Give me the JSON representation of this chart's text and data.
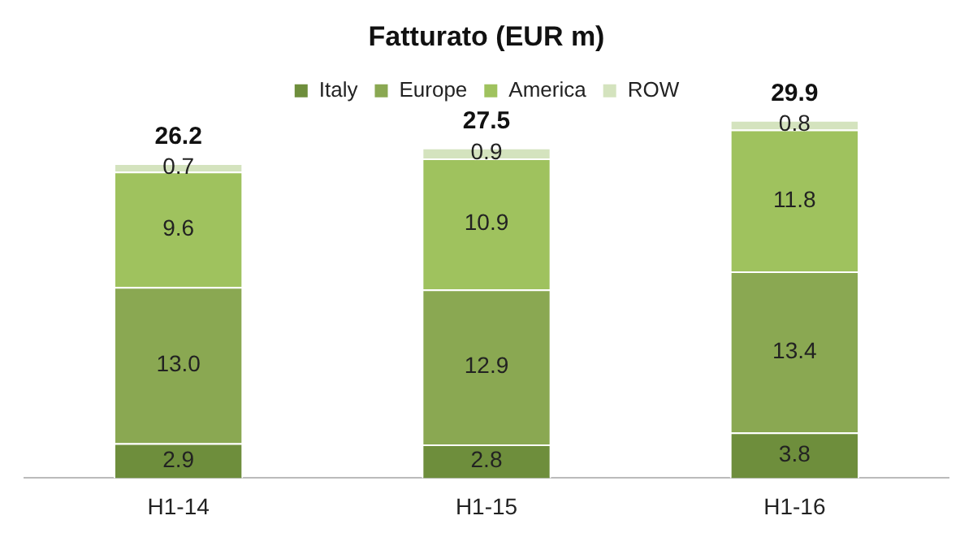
{
  "chart_data": {
    "type": "bar",
    "title": "Fatturato (EUR m)",
    "stacked": true,
    "categories": [
      "H1-14",
      "H1-15",
      "H1-16"
    ],
    "series": [
      {
        "name": "Italy",
        "color": "#6e8e3c",
        "values": [
          2.9,
          2.8,
          3.8
        ],
        "value_labels": [
          "2.9",
          "2.8",
          "3.8"
        ]
      },
      {
        "name": "Europe",
        "color": "#8aa852",
        "values": [
          13.0,
          12.9,
          13.4
        ],
        "value_labels": [
          "13.0",
          "12.9",
          "13.4"
        ]
      },
      {
        "name": "America",
        "color": "#9fc25e",
        "values": [
          9.6,
          10.9,
          11.8
        ],
        "value_labels": [
          "9.6",
          "10.9",
          "11.8"
        ]
      },
      {
        "name": "ROW",
        "color": "#d4e3be",
        "values": [
          0.7,
          0.9,
          0.8
        ],
        "value_labels": [
          "0.7",
          "0.9",
          "0.8"
        ]
      }
    ],
    "totals": [
      "26.2",
      "27.5",
      "29.9"
    ],
    "legend": "top",
    "grid": false,
    "tick_labels": "x"
  }
}
